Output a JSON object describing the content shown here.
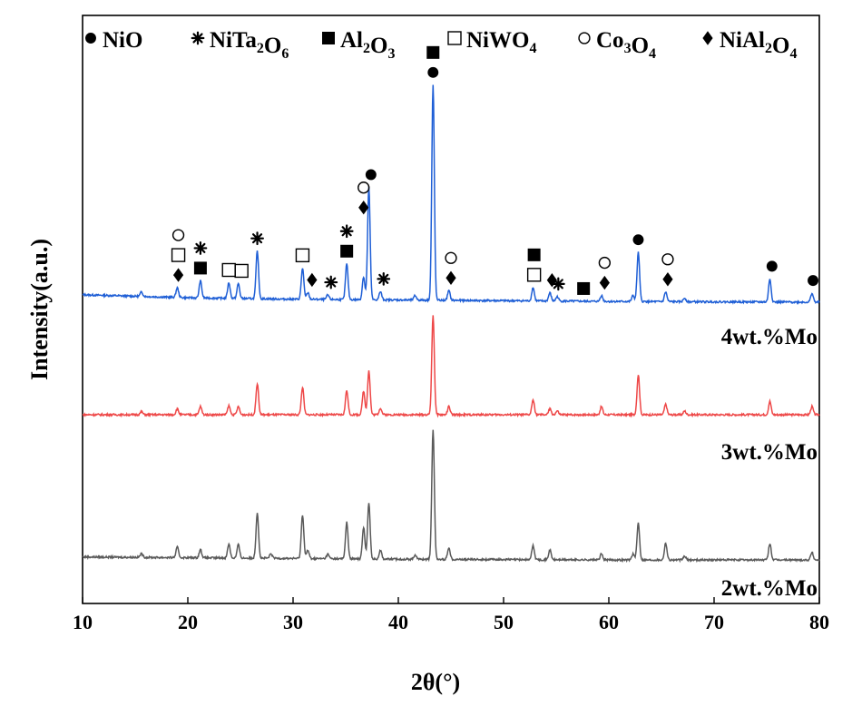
{
  "chart_data": {
    "type": "line",
    "xlabel": "2θ(°)",
    "ylabel": "Intensity(a.u.)",
    "xlim": [
      10,
      80
    ],
    "x_ticks": [
      10,
      20,
      30,
      40,
      50,
      60,
      70,
      80
    ],
    "y_ticks_shown": false,
    "grid": false,
    "legend": {
      "placement": "top",
      "entries": [
        {
          "symbol": "filled-circle",
          "text": "NiO",
          "formula": [
            [
              "NiO",
              ""
            ]
          ]
        },
        {
          "symbol": "asterisk",
          "text": "NiTa2O6",
          "formula": [
            [
              "NiTa",
              "2"
            ],
            [
              "O",
              "6"
            ]
          ]
        },
        {
          "symbol": "filled-square",
          "text": "Al2O3",
          "formula": [
            [
              "Al",
              "2"
            ],
            [
              "O",
              "3"
            ]
          ]
        },
        {
          "symbol": "open-square",
          "text": "NiWO4",
          "formula": [
            [
              "NiWO",
              "4"
            ]
          ]
        },
        {
          "symbol": "open-circle",
          "text": "Co3O4",
          "formula": [
            [
              "Co",
              "3"
            ],
            [
              "O",
              "4"
            ]
          ]
        },
        {
          "symbol": "filled-diamond",
          "text": "NiAl2O4",
          "formula": [
            [
              "NiAl",
              "2"
            ],
            [
              "O",
              "4"
            ]
          ]
        }
      ]
    },
    "series": [
      {
        "name": "4wt.%Mo",
        "color": "#1f5fd6",
        "baseline": [
          [
            10,
            1.0
          ],
          [
            20,
            0.6
          ],
          [
            30,
            0.4
          ],
          [
            40,
            0.3
          ],
          [
            50,
            0.2
          ],
          [
            60,
            0.1
          ],
          [
            70,
            0.05
          ],
          [
            80,
            0.0
          ]
        ],
        "peaks": [
          [
            15.6,
            0.6
          ],
          [
            19.0,
            1.3
          ],
          [
            21.2,
            2.3
          ],
          [
            23.9,
            2.1
          ],
          [
            24.8,
            2.0
          ],
          [
            26.6,
            6.4
          ],
          [
            30.9,
            4.2
          ],
          [
            31.4,
            0.9
          ],
          [
            33.3,
            0.6
          ],
          [
            35.1,
            4.8
          ],
          [
            36.7,
            3.1
          ],
          [
            37.2,
            15.1
          ],
          [
            38.3,
            1.1
          ],
          [
            41.6,
            0.6
          ],
          [
            43.3,
            28.9
          ],
          [
            44.8,
            1.3
          ],
          [
            52.8,
            1.8
          ],
          [
            54.4,
            1.1
          ],
          [
            55.1,
            0.6
          ],
          [
            59.3,
            0.8
          ],
          [
            62.3,
            0.8
          ],
          [
            62.8,
            6.6
          ],
          [
            65.4,
            1.3
          ],
          [
            67.2,
            0.5
          ],
          [
            75.3,
            3.1
          ],
          [
            79.3,
            1.2
          ]
        ]
      },
      {
        "name": "3wt.%Mo",
        "color": "#ee4848",
        "baseline": [
          [
            10,
            0.0
          ],
          [
            20,
            0.0
          ],
          [
            30,
            0.0
          ],
          [
            40,
            0.0
          ],
          [
            50,
            0.0
          ],
          [
            60,
            0.0
          ],
          [
            70,
            0.0
          ],
          [
            80,
            0.0
          ]
        ],
        "peaks": [
          [
            15.6,
            0.4
          ],
          [
            19.0,
            0.8
          ],
          [
            21.2,
            1.1
          ],
          [
            23.9,
            1.2
          ],
          [
            24.8,
            1.1
          ],
          [
            26.6,
            4.2
          ],
          [
            30.9,
            3.7
          ],
          [
            35.1,
            3.3
          ],
          [
            36.7,
            3.2
          ],
          [
            37.2,
            5.9
          ],
          [
            38.3,
            0.9
          ],
          [
            43.3,
            13.4
          ],
          [
            44.8,
            1.1
          ],
          [
            52.8,
            2.0
          ],
          [
            54.4,
            0.8
          ],
          [
            55.1,
            0.5
          ],
          [
            59.3,
            1.1
          ],
          [
            62.8,
            5.4
          ],
          [
            65.4,
            1.4
          ],
          [
            67.2,
            0.5
          ],
          [
            75.3,
            1.8
          ],
          [
            79.3,
            1.1
          ]
        ]
      },
      {
        "name": "2wt.%Mo",
        "color": "#5a5a5a",
        "baseline": [
          [
            10,
            0.4
          ],
          [
            20,
            0.3
          ],
          [
            30,
            0.2
          ],
          [
            40,
            0.1
          ],
          [
            50,
            0.05
          ],
          [
            60,
            0.0
          ],
          [
            70,
            0.0
          ],
          [
            80,
            0.0
          ]
        ],
        "peaks": [
          [
            15.6,
            0.5
          ],
          [
            19.0,
            1.4
          ],
          [
            21.2,
            1.1
          ],
          [
            23.9,
            1.9
          ],
          [
            24.8,
            1.8
          ],
          [
            26.6,
            6.1
          ],
          [
            27.9,
            0.6
          ],
          [
            30.9,
            5.9
          ],
          [
            31.4,
            1.1
          ],
          [
            33.3,
            0.6
          ],
          [
            35.1,
            4.9
          ],
          [
            36.7,
            4.3
          ],
          [
            37.2,
            7.5
          ],
          [
            38.3,
            1.2
          ],
          [
            41.6,
            0.6
          ],
          [
            43.3,
            17.5
          ],
          [
            44.8,
            1.6
          ],
          [
            52.8,
            1.9
          ],
          [
            54.4,
            1.3
          ],
          [
            59.3,
            0.8
          ],
          [
            62.3,
            0.8
          ],
          [
            62.8,
            5.0
          ],
          [
            65.4,
            2.3
          ],
          [
            67.2,
            0.5
          ],
          [
            75.3,
            2.2
          ],
          [
            79.3,
            1.0
          ]
        ]
      }
    ],
    "annotations": [
      {
        "x": 19.1,
        "stack": [
          "filled-diamond",
          "open-square",
          "open-circle"
        ]
      },
      {
        "x": 21.2,
        "stack": [
          "filled-square",
          "asterisk"
        ]
      },
      {
        "x": 23.9,
        "stack": [
          "open-square"
        ]
      },
      {
        "x": 25.1,
        "stack": [
          "open-square"
        ]
      },
      {
        "x": 26.6,
        "stack": [
          "asterisk"
        ]
      },
      {
        "x": 30.9,
        "stack": [
          "open-square"
        ]
      },
      {
        "x": 31.8,
        "stack": [
          "filled-diamond"
        ]
      },
      {
        "x": 33.6,
        "stack": [
          "asterisk"
        ]
      },
      {
        "x": 35.1,
        "stack": [
          "filled-square",
          "asterisk"
        ]
      },
      {
        "x": 36.7,
        "stack": [
          "filled-diamond",
          "open-circle"
        ]
      },
      {
        "x": 37.4,
        "stack": [
          "filled-circle"
        ]
      },
      {
        "x": 38.6,
        "stack": [
          "asterisk"
        ]
      },
      {
        "x": 43.3,
        "stack": [
          "filled-circle",
          "filled-square"
        ]
      },
      {
        "x": 45.0,
        "stack": [
          "filled-diamond",
          "open-circle"
        ]
      },
      {
        "x": 52.9,
        "stack": [
          "open-square",
          "filled-square"
        ]
      },
      {
        "x": 54.6,
        "stack": [
          "filled-diamond"
        ]
      },
      {
        "x": 55.2,
        "stack": [
          "asterisk"
        ]
      },
      {
        "x": 57.6,
        "stack": [
          "filled-square"
        ]
      },
      {
        "x": 59.6,
        "stack": [
          "filled-diamond",
          "open-circle"
        ]
      },
      {
        "x": 62.8,
        "stack": [
          "filled-circle"
        ]
      },
      {
        "x": 65.6,
        "stack": [
          "filled-diamond",
          "open-circle"
        ]
      },
      {
        "x": 75.5,
        "stack": [
          "filled-circle"
        ]
      },
      {
        "x": 79.4,
        "stack": [
          "filled-circle"
        ]
      }
    ]
  }
}
